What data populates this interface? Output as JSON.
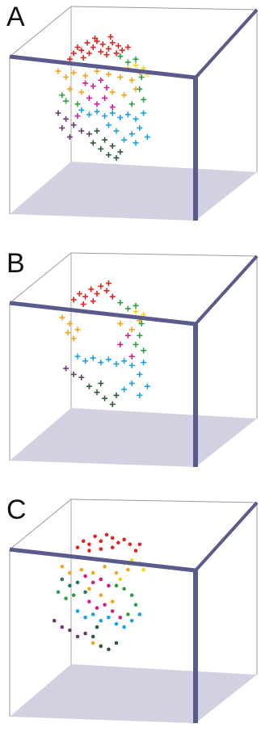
{
  "panels": [
    {
      "label": "A"
    },
    {
      "label": "B"
    },
    {
      "label": "C"
    }
  ],
  "colors": {
    "red": "#e3231f",
    "orange": "#f5a31a",
    "yellow": "#f2d61c",
    "green": "#2f9e45",
    "teal": "#1f7a5c",
    "magenta": "#d21c8f",
    "blue": "#1aa0e6",
    "purple": "#6b3a6e",
    "darkgreen": "#2e5a3a",
    "box_edge": "#5a5a8c",
    "floor": "#c9c9dc"
  },
  "chart_data": [
    {
      "type": "scatter",
      "panel": "A",
      "marker": "plus",
      "series": [
        {
          "color": "red",
          "points": [
            [
              0.38,
              0.86
            ],
            [
              0.4,
              0.9
            ],
            [
              0.42,
              0.88
            ],
            [
              0.45,
              0.93
            ],
            [
              0.48,
              0.9
            ],
            [
              0.5,
              0.94
            ],
            [
              0.53,
              0.92
            ],
            [
              0.56,
              0.89
            ],
            [
              0.58,
              0.93
            ],
            [
              0.61,
              0.91
            ],
            [
              0.63,
              0.88
            ],
            [
              0.46,
              0.86
            ],
            [
              0.52,
              0.87
            ],
            [
              0.55,
              0.85
            ],
            [
              0.43,
              0.83
            ],
            [
              0.6,
              0.86
            ],
            [
              0.66,
              0.9
            ],
            [
              0.36,
              0.82
            ],
            [
              0.49,
              0.96
            ],
            [
              0.57,
              0.97
            ]
          ]
        },
        {
          "color": "orange",
          "points": [
            [
              0.3,
              0.74
            ],
            [
              0.34,
              0.7
            ],
            [
              0.38,
              0.73
            ],
            [
              0.44,
              0.71
            ],
            [
              0.5,
              0.74
            ],
            [
              0.56,
              0.72
            ],
            [
              0.62,
              0.7
            ],
            [
              0.68,
              0.68
            ],
            [
              0.72,
              0.73
            ],
            [
              0.36,
              0.62
            ],
            [
              0.42,
              0.6
            ],
            [
              0.58,
              0.6
            ],
            [
              0.64,
              0.58
            ],
            [
              0.7,
              0.62
            ]
          ]
        },
        {
          "color": "yellow",
          "points": [
            [
              0.74,
              0.76
            ],
            [
              0.76,
              0.72
            ],
            [
              0.7,
              0.78
            ],
            [
              0.66,
              0.76
            ]
          ]
        },
        {
          "color": "green",
          "points": [
            [
              0.62,
              0.84
            ],
            [
              0.66,
              0.8
            ],
            [
              0.7,
              0.82
            ],
            [
              0.73,
              0.7
            ],
            [
              0.72,
              0.62
            ],
            [
              0.74,
              0.55
            ],
            [
              0.68,
              0.52
            ],
            [
              0.32,
              0.58
            ],
            [
              0.34,
              0.54
            ],
            [
              0.4,
              0.52
            ]
          ]
        },
        {
          "color": "magenta",
          "points": [
            [
              0.44,
              0.66
            ],
            [
              0.48,
              0.64
            ],
            [
              0.52,
              0.68
            ],
            [
              0.55,
              0.63
            ],
            [
              0.46,
              0.56
            ],
            [
              0.5,
              0.52
            ],
            [
              0.54,
              0.56
            ],
            [
              0.58,
              0.5
            ],
            [
              0.4,
              0.44
            ]
          ]
        },
        {
          "color": "blue",
          "points": [
            [
              0.42,
              0.48
            ],
            [
              0.46,
              0.45
            ],
            [
              0.5,
              0.47
            ],
            [
              0.54,
              0.44
            ],
            [
              0.58,
              0.46
            ],
            [
              0.62,
              0.43
            ],
            [
              0.66,
              0.45
            ],
            [
              0.7,
              0.42
            ],
            [
              0.72,
              0.36
            ],
            [
              0.68,
              0.32
            ],
            [
              0.64,
              0.28
            ],
            [
              0.6,
              0.34
            ],
            [
              0.56,
              0.38
            ],
            [
              0.74,
              0.46
            ],
            [
              0.76,
              0.3
            ],
            [
              0.7,
              0.26
            ]
          ]
        },
        {
          "color": "purple",
          "points": [
            [
              0.3,
              0.46
            ],
            [
              0.34,
              0.42
            ],
            [
              0.38,
              0.38
            ],
            [
              0.42,
              0.34
            ],
            [
              0.46,
              0.32
            ],
            [
              0.36,
              0.3
            ],
            [
              0.32,
              0.36
            ]
          ]
        },
        {
          "color": "darkgreen",
          "points": [
            [
              0.48,
              0.26
            ],
            [
              0.52,
              0.22
            ],
            [
              0.56,
              0.18
            ],
            [
              0.6,
              0.16
            ],
            [
              0.54,
              0.28
            ],
            [
              0.5,
              0.34
            ],
            [
              0.58,
              0.24
            ],
            [
              0.62,
              0.2
            ]
          ]
        }
      ]
    },
    {
      "type": "scatter",
      "panel": "B",
      "marker": "plus",
      "series": [
        {
          "color": "red",
          "points": [
            [
              0.38,
              0.86
            ],
            [
              0.41,
              0.9
            ],
            [
              0.44,
              0.88
            ],
            [
              0.47,
              0.93
            ],
            [
              0.5,
              0.9
            ],
            [
              0.52,
              0.95
            ],
            [
              0.55,
              0.92
            ],
            [
              0.58,
              0.88
            ],
            [
              0.43,
              0.83
            ],
            [
              0.48,
              0.85
            ],
            [
              0.56,
              0.97
            ]
          ]
        },
        {
          "color": "orange",
          "points": [
            [
              0.32,
              0.74
            ],
            [
              0.36,
              0.7
            ],
            [
              0.4,
              0.66
            ],
            [
              0.38,
              0.6
            ],
            [
              0.35,
              0.64
            ],
            [
              0.62,
              0.7
            ],
            [
              0.68,
              0.66
            ],
            [
              0.72,
              0.72
            ]
          ]
        },
        {
          "color": "yellow",
          "points": [
            [
              0.74,
              0.76
            ],
            [
              0.7,
              0.78
            ]
          ]
        },
        {
          "color": "green",
          "points": [
            [
              0.62,
              0.84
            ],
            [
              0.66,
              0.8
            ],
            [
              0.7,
              0.82
            ],
            [
              0.73,
              0.7
            ],
            [
              0.72,
              0.62
            ],
            [
              0.7,
              0.56
            ],
            [
              0.74,
              0.52
            ]
          ]
        },
        {
          "color": "magenta",
          "points": [
            [
              0.66,
              0.62
            ],
            [
              0.62,
              0.56
            ],
            [
              0.68,
              0.48
            ]
          ]
        },
        {
          "color": "blue",
          "points": [
            [
              0.4,
              0.48
            ],
            [
              0.44,
              0.45
            ],
            [
              0.48,
              0.47
            ],
            [
              0.52,
              0.44
            ],
            [
              0.56,
              0.46
            ],
            [
              0.6,
              0.43
            ],
            [
              0.64,
              0.45
            ],
            [
              0.68,
              0.42
            ],
            [
              0.72,
              0.36
            ],
            [
              0.68,
              0.3
            ],
            [
              0.64,
              0.26
            ],
            [
              0.74,
              0.44
            ],
            [
              0.76,
              0.28
            ],
            [
              0.72,
              0.22
            ]
          ]
        },
        {
          "color": "purple",
          "points": [
            [
              0.34,
              0.4
            ],
            [
              0.38,
              0.36
            ],
            [
              0.42,
              0.34
            ]
          ]
        },
        {
          "color": "darkgreen",
          "points": [
            [
              0.46,
              0.28
            ],
            [
              0.5,
              0.24
            ],
            [
              0.54,
              0.2
            ],
            [
              0.58,
              0.16
            ],
            [
              0.52,
              0.3
            ],
            [
              0.6,
              0.22
            ]
          ]
        }
      ]
    },
    {
      "type": "scatter",
      "panel": "C",
      "marker": "dot",
      "series": [
        {
          "color": "red",
          "points": [
            [
              0.4,
              0.86
            ],
            [
              0.43,
              0.9
            ],
            [
              0.46,
              0.88
            ],
            [
              0.49,
              0.93
            ],
            [
              0.52,
              0.9
            ],
            [
              0.55,
              0.94
            ],
            [
              0.58,
              0.92
            ],
            [
              0.61,
              0.89
            ],
            [
              0.64,
              0.91
            ],
            [
              0.67,
              0.88
            ],
            [
              0.46,
              0.84
            ],
            [
              0.52,
              0.85
            ],
            [
              0.58,
              0.86
            ],
            [
              0.7,
              0.84
            ],
            [
              0.72,
              0.88
            ]
          ]
        },
        {
          "color": "orange",
          "points": [
            [
              0.32,
              0.74
            ],
            [
              0.36,
              0.7
            ],
            [
              0.42,
              0.72
            ],
            [
              0.48,
              0.7
            ],
            [
              0.54,
              0.74
            ],
            [
              0.6,
              0.7
            ],
            [
              0.66,
              0.72
            ],
            [
              0.46,
              0.6
            ],
            [
              0.52,
              0.56
            ],
            [
              0.58,
              0.52
            ],
            [
              0.48,
              0.26
            ]
          ]
        },
        {
          "color": "yellow",
          "points": [
            [
              0.72,
              0.76
            ],
            [
              0.74,
              0.72
            ],
            [
              0.68,
              0.78
            ],
            [
              0.64,
              0.76
            ],
            [
              0.62,
              0.66
            ]
          ]
        },
        {
          "color": "green",
          "points": [
            [
              0.3,
              0.58
            ],
            [
              0.34,
              0.54
            ],
            [
              0.38,
              0.56
            ],
            [
              0.6,
              0.62
            ],
            [
              0.64,
              0.6
            ],
            [
              0.68,
              0.56
            ],
            [
              0.7,
              0.5
            ],
            [
              0.66,
              0.44
            ]
          ]
        },
        {
          "color": "teal",
          "points": [
            [
              0.32,
              0.66
            ],
            [
              0.36,
              0.62
            ],
            [
              0.4,
              0.64
            ],
            [
              0.44,
              0.58
            ]
          ]
        },
        {
          "color": "magenta",
          "points": [
            [
              0.44,
              0.68
            ],
            [
              0.48,
              0.64
            ],
            [
              0.52,
              0.66
            ],
            [
              0.56,
              0.62
            ],
            [
              0.46,
              0.52
            ],
            [
              0.5,
              0.48
            ],
            [
              0.54,
              0.5
            ],
            [
              0.58,
              0.46
            ],
            [
              0.62,
              0.42
            ]
          ]
        },
        {
          "color": "blue",
          "points": [
            [
              0.4,
              0.46
            ],
            [
              0.44,
              0.42
            ],
            [
              0.48,
              0.44
            ],
            [
              0.52,
              0.4
            ],
            [
              0.56,
              0.42
            ],
            [
              0.6,
              0.38
            ],
            [
              0.64,
              0.36
            ],
            [
              0.68,
              0.4
            ],
            [
              0.72,
              0.44
            ]
          ]
        },
        {
          "color": "purple",
          "points": [
            [
              0.28,
              0.4
            ],
            [
              0.32,
              0.36
            ],
            [
              0.36,
              0.34
            ],
            [
              0.4,
              0.3
            ],
            [
              0.44,
              0.32
            ]
          ]
        },
        {
          "color": "darkgreen",
          "points": [
            [
              0.48,
              0.3
            ],
            [
              0.52,
              0.24
            ],
            [
              0.56,
              0.22
            ],
            [
              0.6,
              0.26
            ],
            [
              0.5,
              0.36
            ]
          ]
        }
      ]
    }
  ]
}
